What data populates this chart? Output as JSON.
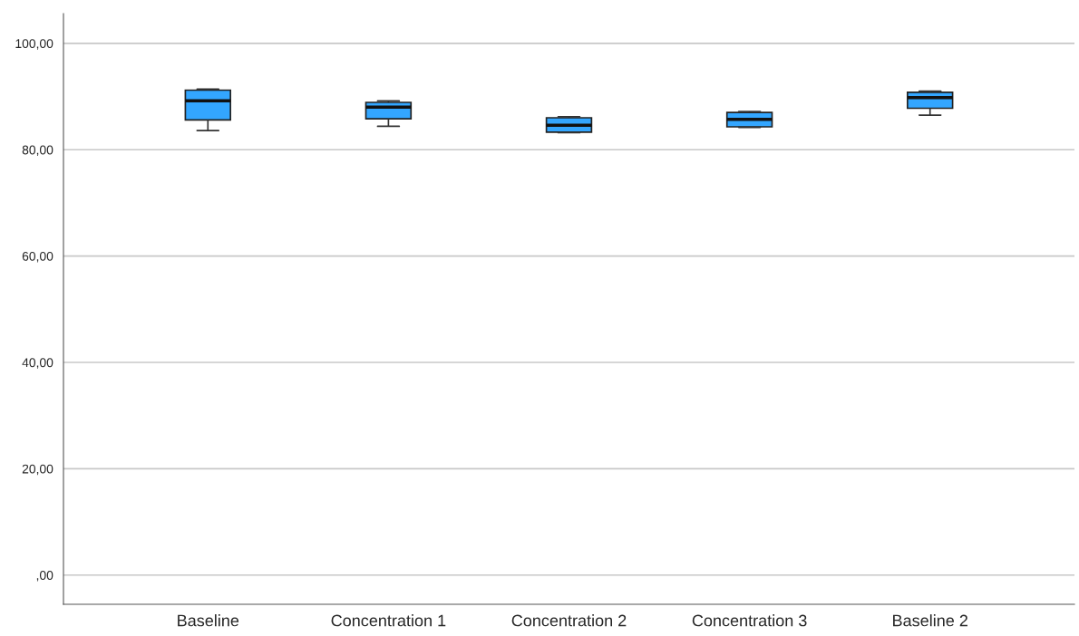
{
  "chart_data": {
    "type": "box",
    "categories": [
      "Baseline",
      "Concentration 1",
      "Concentration 2",
      "Concentration 3",
      "Baseline 2"
    ],
    "boxes": [
      {
        "low": 83.6,
        "q1": 85.6,
        "median": 89.2,
        "q3": 91.2,
        "high": 91.4
      },
      {
        "low": 84.4,
        "q1": 85.8,
        "median": 88.0,
        "q3": 88.9,
        "high": 89.2
      },
      {
        "low": 83.2,
        "q1": 83.3,
        "median": 84.6,
        "q3": 86.0,
        "high": 86.2
      },
      {
        "low": 84.2,
        "q1": 84.3,
        "median": 85.7,
        "q3": 87.0,
        "high": 87.2
      },
      {
        "low": 86.5,
        "q1": 87.8,
        "median": 89.8,
        "q3": 90.8,
        "high": 91.0
      }
    ],
    "color": "#33a6ff",
    "ylim": [
      -5.5,
      105.6
    ],
    "yticks": [
      {
        "value": 0,
        "label": ",00"
      },
      {
        "value": 20,
        "label": "20,00"
      },
      {
        "value": 40,
        "label": "40,00"
      },
      {
        "value": 60,
        "label": "60,00"
      },
      {
        "value": 80,
        "label": "80,00"
      },
      {
        "value": 100,
        "label": "100,00"
      }
    ],
    "grid": "y"
  }
}
